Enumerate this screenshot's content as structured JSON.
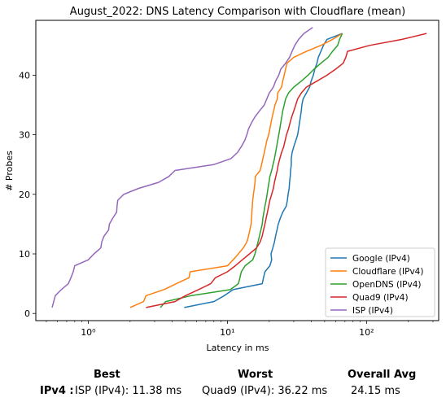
{
  "chart_data": {
    "type": "line",
    "title": "August_2022: DNS Latency Comparison with Cloudflare (mean)",
    "xlabel": "Latency in ms",
    "ylabel": "# Probes",
    "xscale": "log",
    "xlim": [
      0.42,
      330
    ],
    "ylim": [
      -1.2,
      49.2
    ],
    "x_ticks": [
      1,
      10,
      100
    ],
    "x_tick_labels": [
      "10⁰",
      "10¹",
      "10²"
    ],
    "y_ticks": [
      0,
      10,
      20,
      30,
      40
    ],
    "y_tick_labels": [
      "0",
      "10",
      "20",
      "30",
      "40"
    ],
    "grid": false,
    "legend": "bottom-right",
    "series": [
      {
        "name": "Google (IPv4)",
        "color": "#1f77b4",
        "points": [
          [
            4.9,
            1
          ],
          [
            8,
            2
          ],
          [
            9.5,
            3
          ],
          [
            11,
            4
          ],
          [
            17.8,
            5
          ],
          [
            18.2,
            6
          ],
          [
            18.6,
            7
          ],
          [
            20.2,
            8
          ],
          [
            20.8,
            9
          ],
          [
            20.6,
            10
          ],
          [
            21.2,
            11
          ],
          [
            21.8,
            12
          ],
          [
            22.2,
            13
          ],
          [
            22.7,
            14
          ],
          [
            23.2,
            15
          ],
          [
            24,
            16
          ],
          [
            25,
            17
          ],
          [
            26.5,
            18
          ],
          [
            27,
            19
          ],
          [
            27.3,
            20
          ],
          [
            27.8,
            21
          ],
          [
            28,
            22
          ],
          [
            28.3,
            23
          ],
          [
            28.5,
            24
          ],
          [
            28.8,
            25
          ],
          [
            28.8,
            26
          ],
          [
            29.2,
            27
          ],
          [
            30,
            28
          ],
          [
            31,
            29
          ],
          [
            32,
            30
          ],
          [
            32.5,
            31
          ],
          [
            33,
            32
          ],
          [
            33.5,
            33
          ],
          [
            34,
            34
          ],
          [
            34.3,
            35
          ],
          [
            35,
            36
          ],
          [
            37,
            37
          ],
          [
            39,
            38
          ],
          [
            40,
            39
          ],
          [
            41.5,
            40
          ],
          [
            42.5,
            41
          ],
          [
            44,
            42
          ],
          [
            45,
            43
          ],
          [
            47,
            44
          ],
          [
            49,
            45
          ],
          [
            52,
            46
          ],
          [
            67,
            47
          ]
        ]
      },
      {
        "name": "Cloudflare (IPv4)",
        "color": "#ff7f0e",
        "points": [
          [
            2,
            1
          ],
          [
            2.5,
            2
          ],
          [
            2.6,
            3
          ],
          [
            3.5,
            4
          ],
          [
            4.3,
            5
          ],
          [
            5.3,
            6
          ],
          [
            5.4,
            7
          ],
          [
            10,
            8
          ],
          [
            11,
            9
          ],
          [
            12,
            10
          ],
          [
            13,
            11
          ],
          [
            13.8,
            12
          ],
          [
            14.2,
            13
          ],
          [
            14.5,
            14
          ],
          [
            14.8,
            15
          ],
          [
            14.9,
            16
          ],
          [
            15,
            17
          ],
          [
            15.1,
            18
          ],
          [
            15.2,
            19
          ],
          [
            15.4,
            20
          ],
          [
            15.6,
            21
          ],
          [
            15.8,
            22
          ],
          [
            15.9,
            23
          ],
          [
            17.2,
            24
          ],
          [
            17.6,
            25
          ],
          [
            18,
            26
          ],
          [
            18.4,
            27
          ],
          [
            18.8,
            28
          ],
          [
            19.2,
            29
          ],
          [
            19.8,
            30
          ],
          [
            20.2,
            31
          ],
          [
            20.6,
            32
          ],
          [
            21,
            33
          ],
          [
            21.5,
            34
          ],
          [
            22,
            35
          ],
          [
            22.8,
            36
          ],
          [
            23,
            37
          ],
          [
            24.5,
            38
          ],
          [
            25,
            39
          ],
          [
            25.6,
            40
          ],
          [
            26.2,
            41
          ],
          [
            26.8,
            42
          ],
          [
            30,
            43
          ],
          [
            37,
            44
          ],
          [
            47,
            45
          ],
          [
            57,
            46
          ],
          [
            67,
            47
          ]
        ]
      },
      {
        "name": "OpenDNS (IPv4)",
        "color": "#2ca02c",
        "points": [
          [
            3.3,
            1
          ],
          [
            3.6,
            2
          ],
          [
            5.5,
            3
          ],
          [
            10.5,
            4
          ],
          [
            12,
            5
          ],
          [
            12.3,
            6
          ],
          [
            12.6,
            7
          ],
          [
            13.4,
            8
          ],
          [
            15.2,
            9
          ],
          [
            15.8,
            10
          ],
          [
            16.2,
            11
          ],
          [
            16.6,
            12
          ],
          [
            17,
            13
          ],
          [
            17.4,
            14
          ],
          [
            17.8,
            15
          ],
          [
            18,
            16
          ],
          [
            18.3,
            17
          ],
          [
            18.6,
            18
          ],
          [
            19,
            19
          ],
          [
            19.3,
            20
          ],
          [
            19.6,
            21
          ],
          [
            19.9,
            22
          ],
          [
            20.2,
            23
          ],
          [
            20.8,
            24
          ],
          [
            21.3,
            25
          ],
          [
            21.8,
            26
          ],
          [
            22.2,
            27
          ],
          [
            22.6,
            28
          ],
          [
            23,
            29
          ],
          [
            23.4,
            30
          ],
          [
            23.8,
            31
          ],
          [
            24.2,
            32
          ],
          [
            24.6,
            33
          ],
          [
            25,
            34
          ],
          [
            25.6,
            35
          ],
          [
            26.2,
            36
          ],
          [
            27.5,
            37
          ],
          [
            30,
            38
          ],
          [
            34,
            39
          ],
          [
            38,
            40
          ],
          [
            42,
            41
          ],
          [
            47,
            42
          ],
          [
            53,
            43
          ],
          [
            57,
            44
          ],
          [
            62,
            45
          ],
          [
            64,
            46
          ],
          [
            67,
            47
          ]
        ]
      },
      {
        "name": "Quad9 (IPv4)",
        "color": "#d62728",
        "points": [
          [
            2.6,
            1
          ],
          [
            4.2,
            2
          ],
          [
            5,
            3
          ],
          [
            6.2,
            4
          ],
          [
            7.6,
            5
          ],
          [
            8.2,
            6
          ],
          [
            10,
            7
          ],
          [
            11.4,
            8
          ],
          [
            12.8,
            9
          ],
          [
            14.4,
            10
          ],
          [
            16.2,
            11
          ],
          [
            17.2,
            12
          ],
          [
            17.8,
            13
          ],
          [
            18.2,
            14
          ],
          [
            18.6,
            15
          ],
          [
            19,
            16
          ],
          [
            19.4,
            17
          ],
          [
            19.8,
            18
          ],
          [
            20.2,
            19
          ],
          [
            20.8,
            20
          ],
          [
            21.4,
            21
          ],
          [
            21.8,
            22
          ],
          [
            22.3,
            23
          ],
          [
            22.8,
            24
          ],
          [
            23.2,
            25
          ],
          [
            23.8,
            26
          ],
          [
            24.5,
            27
          ],
          [
            25.4,
            28
          ],
          [
            26,
            29
          ],
          [
            26.6,
            30
          ],
          [
            27.5,
            31
          ],
          [
            28.2,
            32
          ],
          [
            29,
            33
          ],
          [
            30,
            34
          ],
          [
            31,
            35
          ],
          [
            32,
            36
          ],
          [
            34,
            37
          ],
          [
            37,
            38
          ],
          [
            44,
            39
          ],
          [
            52,
            40
          ],
          [
            60,
            41
          ],
          [
            68,
            42
          ],
          [
            71,
            43
          ],
          [
            73,
            44
          ],
          [
            105,
            45
          ],
          [
            180,
            46
          ],
          [
            270,
            47
          ]
        ]
      },
      {
        "name": "ISP (IPv4)",
        "color": "#9467bd",
        "points": [
          [
            0.55,
            1
          ],
          [
            0.58,
            3
          ],
          [
            0.64,
            4
          ],
          [
            0.72,
            5
          ],
          [
            0.75,
            6
          ],
          [
            0.78,
            7
          ],
          [
            0.8,
            8
          ],
          [
            1,
            9
          ],
          [
            1.1,
            10
          ],
          [
            1.23,
            11
          ],
          [
            1.25,
            12
          ],
          [
            1.3,
            13
          ],
          [
            1.4,
            14
          ],
          [
            1.42,
            15
          ],
          [
            1.5,
            16
          ],
          [
            1.6,
            17
          ],
          [
            1.61,
            18
          ],
          [
            1.63,
            19
          ],
          [
            1.8,
            20
          ],
          [
            2.3,
            21
          ],
          [
            3.2,
            22
          ],
          [
            3.8,
            23
          ],
          [
            4.2,
            24
          ],
          [
            8,
            25
          ],
          [
            10.6,
            26
          ],
          [
            11.8,
            27
          ],
          [
            12.6,
            28
          ],
          [
            13.3,
            29
          ],
          [
            13.8,
            30
          ],
          [
            14.2,
            31
          ],
          [
            14.9,
            32
          ],
          [
            15.8,
            33
          ],
          [
            17,
            34
          ],
          [
            18.4,
            35
          ],
          [
            19.2,
            36
          ],
          [
            20,
            37
          ],
          [
            21.4,
            38
          ],
          [
            22.2,
            39
          ],
          [
            23.4,
            40
          ],
          [
            24.2,
            41
          ],
          [
            26.2,
            42
          ],
          [
            28,
            43
          ],
          [
            29.2,
            44
          ],
          [
            30.5,
            45
          ],
          [
            32.5,
            46
          ],
          [
            35.5,
            47
          ],
          [
            41,
            48
          ]
        ]
      }
    ]
  },
  "summary": {
    "headers": {
      "best": "Best",
      "worst": "Worst",
      "overall": "Overall Avg"
    },
    "row_label": "IPv4 :",
    "best_value": "ISP (IPv4): 11.38 ms",
    "worst_value": "Quad9 (IPv4): 36.22 ms",
    "overall_value": "24.15 ms"
  }
}
